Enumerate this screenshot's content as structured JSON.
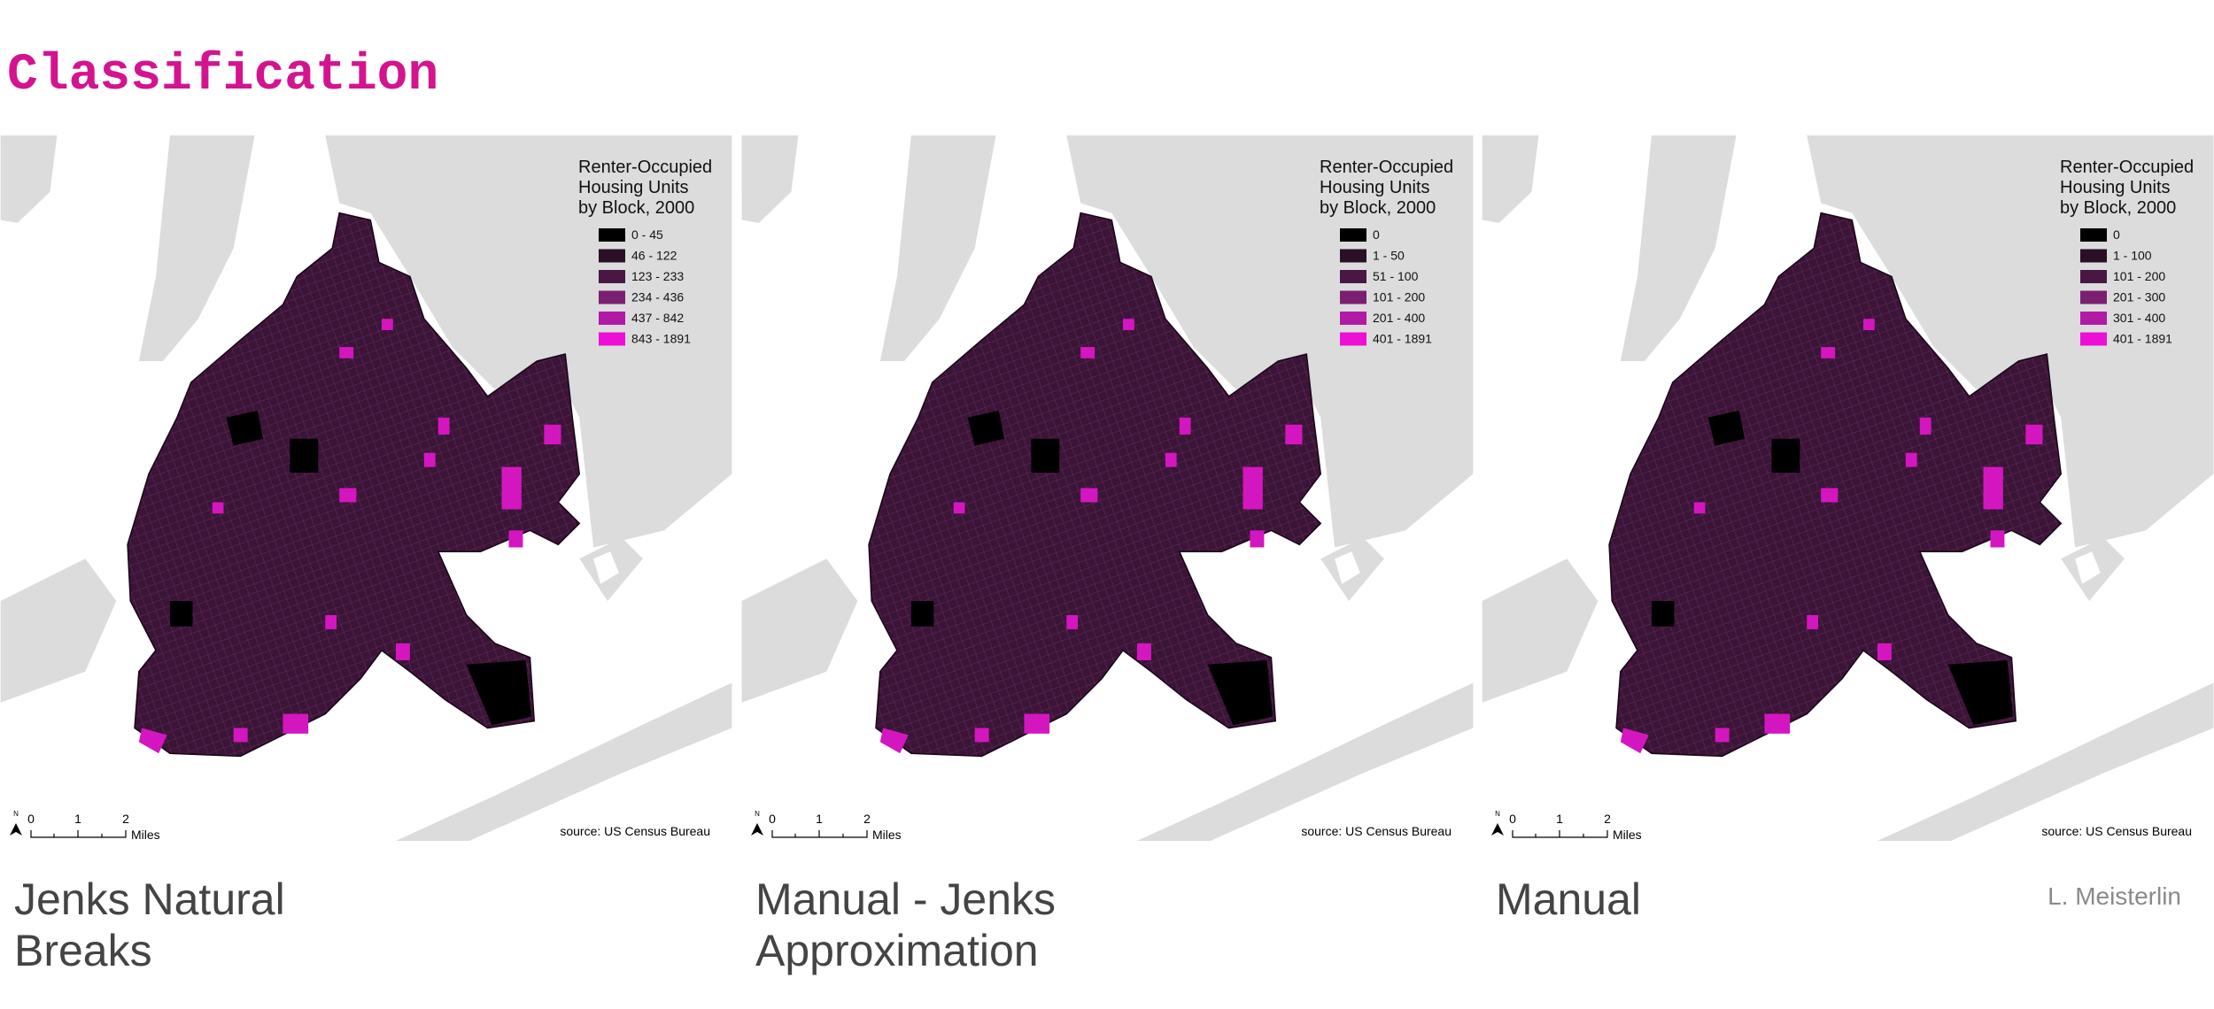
{
  "title": "Classification",
  "panels": [
    {
      "legend": {
        "title": [
          "Renter-Occupied",
          "Housing Units",
          "by Block, 2000"
        ],
        "classes": [
          {
            "label": "0 - 45",
            "color": "#000000"
          },
          {
            "label": "46 - 122",
            "color": "#2a0f27"
          },
          {
            "label": "123 - 233",
            "color": "#4a1644"
          },
          {
            "label": "234 - 436",
            "color": "#7a1f72"
          },
          {
            "label": "437 - 842",
            "color": "#b21aa6"
          },
          {
            "label": "843 - 1891",
            "color": "#ec10d6"
          }
        ]
      },
      "north": "N",
      "scale": [
        "0",
        "1",
        "2",
        "Miles"
      ],
      "source": "source: US Census Bureau",
      "caption": [
        "Jenks Natural",
        "Breaks"
      ]
    },
    {
      "legend": {
        "title": [
          "Renter-Occupied",
          "Housing Units",
          "by Block, 2000"
        ],
        "classes": [
          {
            "label": "0",
            "color": "#000000"
          },
          {
            "label": "1 - 50",
            "color": "#2a0f27"
          },
          {
            "label": "51 - 100",
            "color": "#4a1644"
          },
          {
            "label": "101 - 200",
            "color": "#7a1f72"
          },
          {
            "label": "201 - 400",
            "color": "#b21aa6"
          },
          {
            "label": "401 - 1891",
            "color": "#ec10d6"
          }
        ]
      },
      "north": "N",
      "scale": [
        "0",
        "1",
        "2",
        "Miles"
      ],
      "source": "source: US Census Bureau",
      "caption": [
        "Manual - Jenks",
        "Approximation"
      ]
    },
    {
      "legend": {
        "title": [
          "Renter-Occupied",
          "Housing Units",
          "by Block, 2000"
        ],
        "classes": [
          {
            "label": "0",
            "color": "#000000"
          },
          {
            "label": "1 - 100",
            "color": "#2a0f27"
          },
          {
            "label": "101 - 200",
            "color": "#4a1644"
          },
          {
            "label": "201 - 300",
            "color": "#7a1f72"
          },
          {
            "label": "301 - 400",
            "color": "#b21aa6"
          },
          {
            "label": "401 - 1891",
            "color": "#ec10d6"
          }
        ]
      },
      "north": "N",
      "scale": [
        "0",
        "1",
        "2",
        "Miles"
      ],
      "source": "source: US Census Bureau",
      "caption": [
        "Manual"
      ]
    }
  ],
  "author": "L. Meisterlin"
}
